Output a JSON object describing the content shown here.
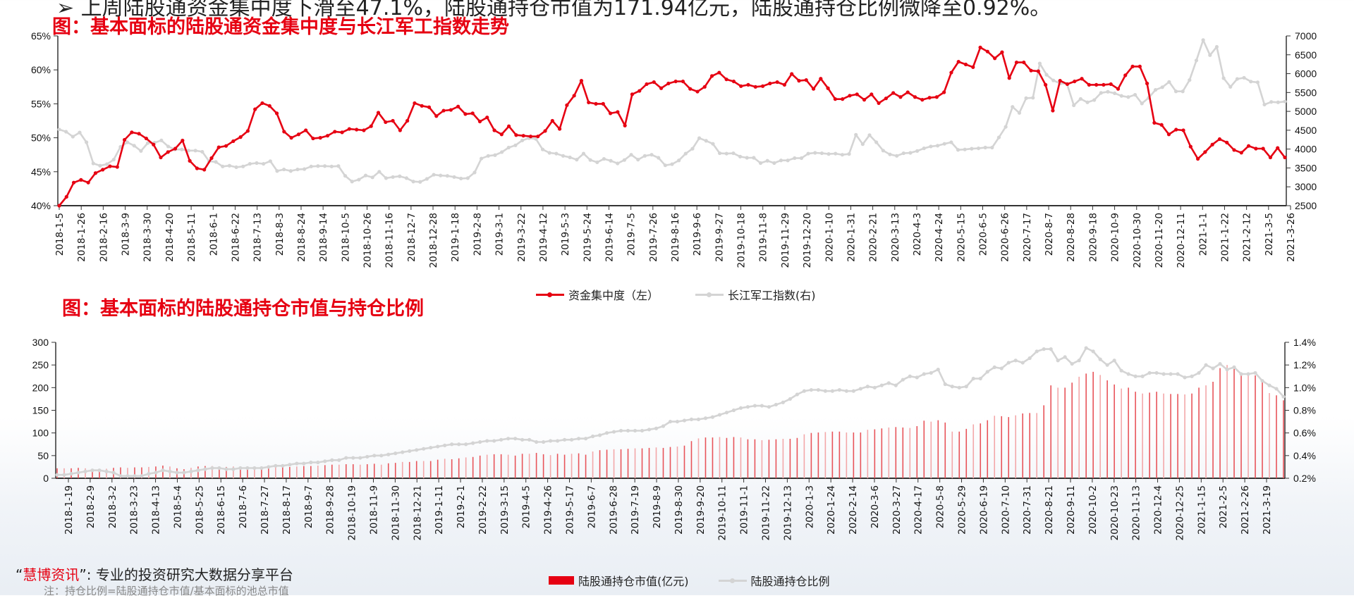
{
  "header": {
    "cut_off_text": "➢  上周陆股通资金集中度下滑至47.1%，陆股通持仓市值为171.94亿元，陆股通持仓比例微降至0.92%。"
  },
  "colors": {
    "accent_red": "#e60012",
    "series_gray": "#d4d4d4",
    "bar_red": "#e8545a",
    "axis": "#333333"
  },
  "footer": {
    "brand": "慧博资讯",
    "brand_prefix": "“",
    "brand_suffix": "”: 专业的投资研究大数据分享平台",
    "note": "注：持仓比例=陆股通持仓市值/基本面标的池总市值"
  },
  "chart_data": [
    {
      "type": "line",
      "title": "图：基本面标的陆股通资金集中度与长江军工指数走势",
      "xlabel": "",
      "ylabel_left": "资金集中度",
      "ylabel_right": "长江军工指数",
      "ylim_left": [
        0.4,
        0.65
      ],
      "yticks_left": [
        "40%",
        "45%",
        "50%",
        "55%",
        "60%",
        "65%"
      ],
      "ylim_right": [
        2500,
        7000
      ],
      "yticks_right": [
        "2500",
        "3000",
        "3500",
        "4000",
        "4500",
        "5000",
        "5500",
        "6000",
        "6500",
        "7000"
      ],
      "grid": false,
      "legend_position": "bottom",
      "x_tick_labels": [
        "2018-1-5",
        "2018-1-26",
        "2018-2-16",
        "2018-3-9",
        "2018-3-30",
        "2018-4-20",
        "2018-5-11",
        "2018-6-1",
        "2018-6-22",
        "2018-7-13",
        "2018-8-3",
        "2018-8-24",
        "2018-9-14",
        "2018-10-5",
        "2018-10-26",
        "2018-11-16",
        "2018-12-7",
        "2018-12-28",
        "2019-1-18",
        "2019-2-8",
        "2019-3-1",
        "2019-3-22",
        "2019-4-12",
        "2019-5-3",
        "2019-5-24",
        "2019-6-14",
        "2019-7-5",
        "2019-7-26",
        "2019-8-16",
        "2019-9-6",
        "2019-9-27",
        "2019-10-18",
        "2019-11-8",
        "2019-11-29",
        "2019-12-20",
        "2020-1-10",
        "2020-1-31",
        "2020-2-21",
        "2020-3-13",
        "2020-4-3",
        "2020-4-24",
        "2020-5-15",
        "2020-6-5",
        "2020-6-26",
        "2020-7-17",
        "2020-8-7",
        "2020-8-28",
        "2020-9-18",
        "2020-10-9",
        "2020-10-30",
        "2020-11-20",
        "2020-12-11",
        "2021-1-1",
        "2021-1-22",
        "2021-2-12",
        "2021-3-5",
        "2021-3-26"
      ],
      "series": [
        {
          "name": "资金集中度（左）",
          "axis": "left",
          "color": "#e60012",
          "values": [
            0.4,
            0.413,
            0.434,
            0.438,
            0.434,
            0.448,
            0.453,
            0.458,
            0.457,
            0.497,
            0.508,
            0.506,
            0.499,
            0.49,
            0.471,
            0.479,
            0.484,
            0.496,
            0.466,
            0.455,
            0.453,
            0.47,
            0.486,
            0.488,
            0.495,
            0.501,
            0.51,
            0.542,
            0.551,
            0.547,
            0.536,
            0.509,
            0.5,
            0.505,
            0.511,
            0.499,
            0.5,
            0.503,
            0.509,
            0.508,
            0.513,
            0.512,
            0.511,
            0.517,
            0.537,
            0.523,
            0.525,
            0.511,
            0.525,
            0.551,
            0.547,
            0.545,
            0.532,
            0.54,
            0.541,
            0.546,
            0.535,
            0.536,
            0.524,
            0.53,
            0.511,
            0.505,
            0.517,
            0.504,
            0.503,
            0.502,
            0.502,
            0.51,
            0.525,
            0.513,
            0.548,
            0.562,
            0.584,
            0.552,
            0.55,
            0.55,
            0.536,
            0.538,
            0.518,
            0.564,
            0.569,
            0.579,
            0.582,
            0.573,
            0.58,
            0.583,
            0.583,
            0.572,
            0.568,
            0.575,
            0.591,
            0.596,
            0.586,
            0.583,
            0.576,
            0.578,
            0.575,
            0.576,
            0.58,
            0.582,
            0.578,
            0.594,
            0.584,
            0.585,
            0.572,
            0.587,
            0.573,
            0.557,
            0.557,
            0.562,
            0.564,
            0.556,
            0.564,
            0.551,
            0.558,
            0.566,
            0.56,
            0.567,
            0.56,
            0.556,
            0.559,
            0.56,
            0.567,
            0.596,
            0.612,
            0.608,
            0.604,
            0.633,
            0.627,
            0.617,
            0.626,
            0.588,
            0.611,
            0.611,
            0.599,
            0.598,
            0.578,
            0.54,
            0.584,
            0.579,
            0.583,
            0.587,
            0.578,
            0.578,
            0.578,
            0.579,
            0.572,
            0.592,
            0.605,
            0.605,
            0.58,
            0.522,
            0.519,
            0.505,
            0.512,
            0.511,
            0.487,
            0.469,
            0.479,
            0.49,
            0.498,
            0.493,
            0.482,
            0.478,
            0.488,
            0.484,
            0.484,
            0.471,
            0.485,
            0.471
          ]
        },
        {
          "name": "长江军工指数(右)",
          "axis": "right",
          "color": "#d4d4d4",
          "values": [
            4520,
            4460,
            4330,
            4440,
            4180,
            3620,
            3560,
            3600,
            3720,
            4060,
            4180,
            4090,
            3950,
            4160,
            4170,
            4230,
            4070,
            3990,
            3990,
            3960,
            3960,
            3930,
            3680,
            3660,
            3540,
            3560,
            3520,
            3540,
            3610,
            3630,
            3610,
            3680,
            3420,
            3460,
            3420,
            3460,
            3470,
            3540,
            3550,
            3550,
            3540,
            3550,
            3290,
            3140,
            3190,
            3300,
            3250,
            3400,
            3230,
            3260,
            3280,
            3230,
            3140,
            3130,
            3210,
            3320,
            3300,
            3290,
            3260,
            3220,
            3230,
            3380,
            3750,
            3820,
            3840,
            3920,
            4040,
            4100,
            4230,
            4290,
            4270,
            3990,
            3900,
            3880,
            3820,
            3780,
            3720,
            3880,
            3710,
            3650,
            3740,
            3690,
            3620,
            3710,
            3850,
            3720,
            3820,
            3850,
            3770,
            3570,
            3600,
            3700,
            3880,
            4010,
            4290,
            4220,
            4140,
            3890,
            3880,
            3890,
            3800,
            3770,
            3770,
            3630,
            3690,
            3630,
            3700,
            3700,
            3760,
            3760,
            3880,
            3900,
            3890,
            3870,
            3880,
            3850,
            3870,
            4380,
            4130,
            4370,
            4180,
            3960,
            3860,
            3820,
            3890,
            3900,
            3950,
            4020,
            4070,
            4090,
            4140,
            4180,
            3980,
            3990,
            4010,
            4020,
            4040,
            4040,
            4310,
            4590,
            5120,
            4960,
            5350,
            5360,
            6270,
            5970,
            5820,
            5740,
            5730,
            5160,
            5330,
            5240,
            5300,
            5490,
            5520,
            5480,
            5410,
            5380,
            5440,
            5210,
            5360,
            5570,
            5640,
            5780,
            5530,
            5530,
            5830,
            6350,
            6890,
            6490,
            6710,
            5880,
            5650,
            5860,
            5890,
            5790,
            5770,
            5180,
            5250,
            5240,
            5260
          ]
        }
      ]
    },
    {
      "type": "bar",
      "title": "图：基本面标的陆股通持仓市值与持仓比例",
      "xlabel": "",
      "ylabel_left": "陆股通持仓市值(亿元)",
      "ylabel_right": "陆股通持仓比例",
      "ylim_left": [
        0,
        300
      ],
      "yticks_left": [
        "0",
        "50",
        "100",
        "150",
        "200",
        "250",
        "300"
      ],
      "ylim_right": [
        0.002,
        0.014
      ],
      "yticks_right": [
        "0.2%",
        "0.4%",
        "0.6%",
        "0.8%",
        "1.0%",
        "1.2%",
        "1.4%"
      ],
      "grid": false,
      "legend_position": "bottom",
      "x_tick_labels": [
        "2018-1-19",
        "2018-2-9",
        "2018-3-2",
        "2018-3-23",
        "2018-4-13",
        "2018-5-4",
        "2018-5-25",
        "2018-6-15",
        "2018-7-6",
        "2018-7-27",
        "2018-8-17",
        "2018-9-7",
        "2018-9-28",
        "2018-10-19",
        "2018-11-9",
        "2018-11-30",
        "2018-12-21",
        "2019-1-11",
        "2019-2-1",
        "2019-2-22",
        "2019-3-15",
        "2019-4-5",
        "2019-4-26",
        "2019-5-17",
        "2019-6-7",
        "2019-6-28",
        "2019-7-19",
        "2019-8-9",
        "2019-8-30",
        "2019-9-20",
        "2019-10-11",
        "2019-11-1",
        "2019-11-22",
        "2019-12-13",
        "2020-1-3",
        "2020-1-24",
        "2020-2-14",
        "2020-3-6",
        "2020-3-27",
        "2020-4-17",
        "2020-5-8",
        "2020-5-29",
        "2020-6-19",
        "2020-7-10",
        "2020-7-31",
        "2020-8-21",
        "2020-9-11",
        "2020-10-2",
        "2020-10-23",
        "2020-11-13",
        "2020-12-4",
        "2020-12-25",
        "2021-1-15",
        "2021-2-5",
        "2021-2-26",
        "2021-3-19"
      ],
      "series": [
        {
          "name": "陆股通持仓市值(亿元)",
          "axis": "left",
          "color": "#e60012",
          "kind": "bar",
          "values": [
            22,
            22,
            22,
            23,
            22,
            20,
            20,
            21,
            23,
            24,
            23,
            24,
            24,
            25,
            26,
            28,
            26,
            22,
            20,
            23,
            26,
            27,
            27,
            26,
            25,
            26,
            26,
            26,
            26,
            25,
            26,
            25,
            25,
            25,
            26,
            27,
            27,
            28,
            29,
            30,
            30,
            31,
            31,
            30,
            31,
            32,
            30,
            33,
            34,
            36,
            36,
            38,
            38,
            38,
            41,
            43,
            42,
            44,
            46,
            47,
            50,
            52,
            53,
            53,
            52,
            50,
            54,
            54,
            56,
            53,
            51,
            54,
            52,
            54,
            55,
            52,
            59,
            62,
            63,
            64,
            64,
            65,
            66,
            66,
            67,
            68,
            67,
            69,
            70,
            72,
            82,
            88,
            90,
            90,
            91,
            89,
            91,
            90,
            86,
            86,
            84,
            85,
            86,
            87,
            87,
            89,
            97,
            100,
            101,
            102,
            103,
            103,
            101,
            101,
            101,
            107,
            108,
            110,
            112,
            113,
            112,
            111,
            115,
            127,
            125,
            128,
            123,
            103,
            103,
            109,
            119,
            121,
            128,
            138,
            137,
            135,
            139,
            143,
            144,
            144,
            161,
            205,
            200,
            200,
            211,
            224,
            231,
            235,
            228,
            216,
            207,
            198,
            200,
            191,
            187,
            189,
            191,
            187,
            186,
            186,
            185,
            187,
            200,
            205,
            213,
            243,
            250,
            245,
            233,
            228,
            227,
            218,
            188,
            183,
            172
          ]
        },
        {
          "name": "陆股通持仓比例",
          "axis": "right",
          "color": "#d4d4d4",
          "kind": "line",
          "values": [
            0.0023,
            0.0023,
            0.0024,
            0.0025,
            0.0026,
            0.0027,
            0.0027,
            0.0026,
            0.0025,
            0.0022,
            0.0022,
            0.0022,
            0.0022,
            0.0024,
            0.0025,
            0.0027,
            0.0026,
            0.0025,
            0.0025,
            0.0026,
            0.0027,
            0.0028,
            0.0029,
            0.0029,
            0.0028,
            0.0028,
            0.0029,
            0.0029,
            0.0029,
            0.0029,
            0.003,
            0.0031,
            0.0031,
            0.0032,
            0.0033,
            0.0033,
            0.0034,
            0.0034,
            0.0035,
            0.0036,
            0.0036,
            0.0038,
            0.0038,
            0.0038,
            0.0039,
            0.004,
            0.004,
            0.0041,
            0.0042,
            0.0043,
            0.0044,
            0.0045,
            0.0046,
            0.0047,
            0.0048,
            0.0049,
            0.005,
            0.005,
            0.005,
            0.0051,
            0.0052,
            0.0053,
            0.0053,
            0.0054,
            0.0055,
            0.0055,
            0.0054,
            0.0054,
            0.0052,
            0.0052,
            0.0053,
            0.0053,
            0.0054,
            0.0054,
            0.0055,
            0.0055,
            0.0057,
            0.0058,
            0.006,
            0.0061,
            0.0062,
            0.0062,
            0.0062,
            0.0062,
            0.0063,
            0.0064,
            0.0066,
            0.007,
            0.007,
            0.0071,
            0.0072,
            0.0072,
            0.0073,
            0.0074,
            0.0076,
            0.0078,
            0.008,
            0.0082,
            0.0083,
            0.0084,
            0.0084,
            0.0083,
            0.0085,
            0.0087,
            0.009,
            0.0094,
            0.0097,
            0.0098,
            0.0098,
            0.0097,
            0.0097,
            0.0098,
            0.0097,
            0.0097,
            0.0099,
            0.0101,
            0.01,
            0.0102,
            0.0104,
            0.0102,
            0.0107,
            0.011,
            0.0109,
            0.0112,
            0.0113,
            0.0116,
            0.0103,
            0.0101,
            0.01,
            0.0101,
            0.0108,
            0.0108,
            0.0114,
            0.0118,
            0.0117,
            0.0122,
            0.0124,
            0.0122,
            0.0126,
            0.0132,
            0.0134,
            0.0134,
            0.0124,
            0.0127,
            0.0121,
            0.0124,
            0.0135,
            0.0132,
            0.0125,
            0.012,
            0.0124,
            0.0115,
            0.0112,
            0.011,
            0.011,
            0.0113,
            0.0113,
            0.0112,
            0.0112,
            0.0112,
            0.0109,
            0.011,
            0.0113,
            0.012,
            0.0117,
            0.0121,
            0.0116,
            0.0118,
            0.0112,
            0.0112,
            0.0113,
            0.0106,
            0.0102,
            0.0099,
            0.0092
          ]
        }
      ]
    }
  ]
}
